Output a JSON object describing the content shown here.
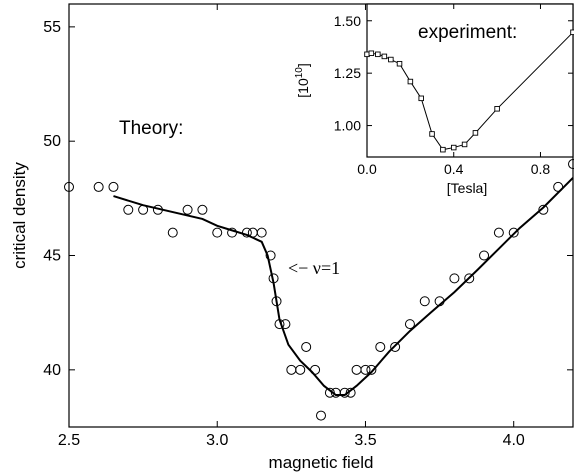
{
  "chart_data": [
    {
      "type": "scatter",
      "title": "",
      "xlabel": "magnetic field",
      "ylabel": "critical density",
      "xlim": [
        2.5,
        4.2
      ],
      "ylim": [
        37.5,
        56
      ],
      "x_ticks": [
        "2.5",
        "3.0",
        "3.5",
        "4.0"
      ],
      "y_ticks": [
        "40",
        "45",
        "50",
        "55"
      ],
      "annotations": [
        "Theory:",
        "<− ν=1"
      ],
      "series": [
        {
          "marker": "open-circle",
          "points": [
            [
              2.5,
              48
            ],
            [
              2.6,
              48
            ],
            [
              2.65,
              48
            ],
            [
              2.7,
              47
            ],
            [
              2.75,
              47
            ],
            [
              2.8,
              47
            ],
            [
              2.85,
              46
            ],
            [
              2.9,
              47
            ],
            [
              2.95,
              47
            ],
            [
              3.0,
              46
            ],
            [
              3.05,
              46
            ],
            [
              3.1,
              46
            ],
            [
              3.12,
              46
            ],
            [
              3.15,
              46
            ],
            [
              3.18,
              45
            ],
            [
              3.19,
              44
            ],
            [
              3.2,
              43
            ],
            [
              3.21,
              42
            ],
            [
              3.23,
              42
            ],
            [
              3.25,
              40
            ],
            [
              3.28,
              40
            ],
            [
              3.3,
              41
            ],
            [
              3.33,
              40
            ],
            [
              3.35,
              38
            ],
            [
              3.38,
              39
            ],
            [
              3.4,
              39
            ],
            [
              3.43,
              39
            ],
            [
              3.45,
              39
            ],
            [
              3.47,
              40
            ],
            [
              3.5,
              40
            ],
            [
              3.52,
              40
            ],
            [
              3.55,
              41
            ],
            [
              3.6,
              41
            ],
            [
              3.65,
              42
            ],
            [
              3.7,
              43
            ],
            [
              3.75,
              43
            ],
            [
              3.8,
              44
            ],
            [
              3.85,
              44
            ],
            [
              3.9,
              45
            ],
            [
              3.95,
              46
            ],
            [
              4.0,
              46
            ],
            [
              4.1,
              47
            ],
            [
              4.15,
              48
            ],
            [
              4.2,
              49
            ]
          ]
        },
        {
          "marker": "none",
          "line": "solid",
          "points": [
            [
              2.65,
              47.6
            ],
            [
              2.75,
              47.2
            ],
            [
              2.85,
              46.9
            ],
            [
              2.95,
              46.6
            ],
            [
              3.0,
              46.3
            ],
            [
              3.05,
              46.1
            ],
            [
              3.1,
              45.9
            ],
            [
              3.15,
              45.6
            ],
            [
              3.17,
              45.0
            ],
            [
              3.19,
              43.8
            ],
            [
              3.21,
              42.2
            ],
            [
              3.24,
              41.1
            ],
            [
              3.28,
              40.4
            ],
            [
              3.32,
              39.9
            ],
            [
              3.36,
              39.3
            ],
            [
              3.4,
              38.9
            ],
            [
              3.43,
              38.9
            ],
            [
              3.47,
              39.3
            ],
            [
              3.52,
              39.9
            ],
            [
              3.58,
              40.8
            ],
            [
              3.65,
              41.7
            ],
            [
              3.72,
              42.5
            ],
            [
              3.8,
              43.4
            ],
            [
              3.88,
              44.4
            ],
            [
              3.95,
              45.3
            ],
            [
              4.02,
              46.2
            ],
            [
              4.1,
              47.1
            ],
            [
              4.2,
              48.4
            ]
          ]
        }
      ]
    },
    {
      "type": "line",
      "title": "experiment:",
      "xlabel": "[Tesla]",
      "ylabel": "[10",
      "ylabel_superscript": "10",
      "ylabel_close": "]",
      "xlim": [
        0.0,
        0.95
      ],
      "ylim": [
        0.85,
        1.58
      ],
      "x_ticks": [
        "0.0",
        "0.4",
        "0.8"
      ],
      "y_ticks": [
        "1.00",
        "1.25",
        "1.50"
      ],
      "series": [
        {
          "marker": "open-square",
          "line": "solid",
          "points": [
            [
              0.0,
              1.34
            ],
            [
              0.02,
              1.345
            ],
            [
              0.05,
              1.34
            ],
            [
              0.08,
              1.33
            ],
            [
              0.11,
              1.315
            ],
            [
              0.15,
              1.295
            ],
            [
              0.2,
              1.21
            ],
            [
              0.25,
              1.13
            ],
            [
              0.3,
              0.96
            ],
            [
              0.35,
              0.885
            ],
            [
              0.4,
              0.895
            ],
            [
              0.45,
              0.91
            ],
            [
              0.5,
              0.965
            ],
            [
              0.6,
              1.08
            ],
            [
              0.95,
              1.445
            ]
          ]
        }
      ]
    }
  ]
}
